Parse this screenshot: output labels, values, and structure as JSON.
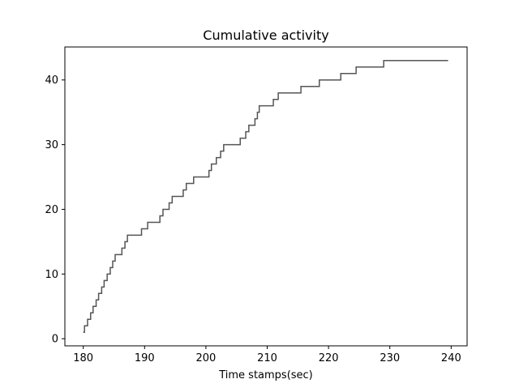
{
  "chart_data": {
    "type": "line",
    "drawstyle": "steps-post",
    "title": "Cumulative activity",
    "xlabel": "Time stamps(sec)",
    "ylabel": "",
    "xlim": [
      177,
      242.6
    ],
    "ylim": [
      -1.1,
      45.1
    ],
    "xticks": [
      180,
      190,
      200,
      210,
      220,
      230,
      240
    ],
    "yticks": [
      0,
      10,
      20,
      30,
      40
    ],
    "grid": false,
    "legend": "none",
    "line_color": "#555555",
    "series": [
      {
        "x": [
          180.0,
          180.2,
          180.7,
          181.2,
          181.6,
          182.1,
          182.5,
          183.0,
          183.4,
          183.9,
          184.4,
          184.8,
          185.2,
          186.3,
          186.8,
          187.2,
          189.5,
          190.5,
          192.5,
          193.0,
          194.0,
          194.5,
          196.3,
          196.8,
          198.0,
          200.5,
          200.9,
          201.7,
          202.4,
          202.9,
          203.6,
          205.6,
          206.5,
          207.0,
          208.0,
          208.4,
          208.7,
          211.0,
          211.8,
          215.5,
          218.5,
          222.0,
          224.5,
          229.0,
          239.5
        ],
        "y": [
          1,
          2,
          3,
          4,
          5,
          6,
          7,
          8,
          9,
          10,
          11,
          12,
          13,
          14,
          15,
          16,
          17,
          18,
          19,
          20,
          21,
          22,
          23,
          24,
          25,
          26,
          27,
          28,
          29,
          30,
          30,
          31,
          32,
          33,
          34,
          35,
          36,
          37,
          38,
          39,
          40,
          41,
          42,
          43,
          43
        ]
      }
    ]
  }
}
